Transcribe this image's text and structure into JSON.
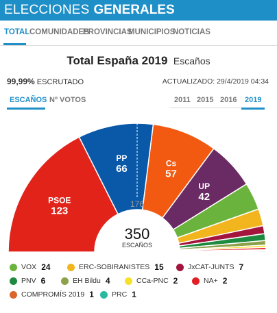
{
  "header": {
    "title_light": "ELECCIONES",
    "title_bold": "GENERALES"
  },
  "nav": {
    "tabs": [
      "TOTAL",
      "COMUNIDADES",
      "PROVINCIAS",
      "MUNICIPIOS",
      "NOTICIAS"
    ],
    "active": "TOTAL"
  },
  "summary": {
    "title": "Total España 2019",
    "subtitle": "Escaños",
    "escrutado_pct": "99,99%",
    "escrutado_label": "ESCRUTADO",
    "actualizado": "ACTUALIZADO: 29/4/2019 04:34"
  },
  "view_tabs": {
    "seats": "ESCAÑOS",
    "votes": "Nº VOTOS",
    "active": "ESCAÑOS"
  },
  "years": {
    "items": [
      "2011",
      "2015",
      "2016",
      "2019"
    ],
    "active": "2019"
  },
  "center": {
    "total_seats": "350",
    "seats_label": "ESCAÑOS",
    "majority": "176"
  },
  "parties": [
    {
      "name": "PSOE",
      "seats": 123,
      "color": "#e2231a"
    },
    {
      "name": "PP",
      "seats": 66,
      "color": "#0a58a8"
    },
    {
      "name": "Cs",
      "seats": 57,
      "color": "#f25a12"
    },
    {
      "name": "UP",
      "seats": 42,
      "color": "#6a2a63"
    },
    {
      "name": "VOX",
      "seats": 24,
      "color": "#6ab33c"
    },
    {
      "name": "ERC-SOBIRANISTES",
      "seats": 15,
      "color": "#f2b51e"
    },
    {
      "name": "JxCAT-JUNTS",
      "seats": 7,
      "color": "#a4153e"
    },
    {
      "name": "PNV",
      "seats": 6,
      "color": "#1e8a3f"
    },
    {
      "name": "EH Bildu",
      "seats": 4,
      "color": "#8ca14a"
    },
    {
      "name": "CCa-PNC",
      "seats": 2,
      "color": "#f5e12a"
    },
    {
      "name": "NA+",
      "seats": 2,
      "color": "#e31e24"
    },
    {
      "name": "COMPROMÍS 2019",
      "seats": 1,
      "color": "#d9652b"
    },
    {
      "name": "PRC",
      "seats": 1,
      "color": "#2bb8a0"
    }
  ]
}
